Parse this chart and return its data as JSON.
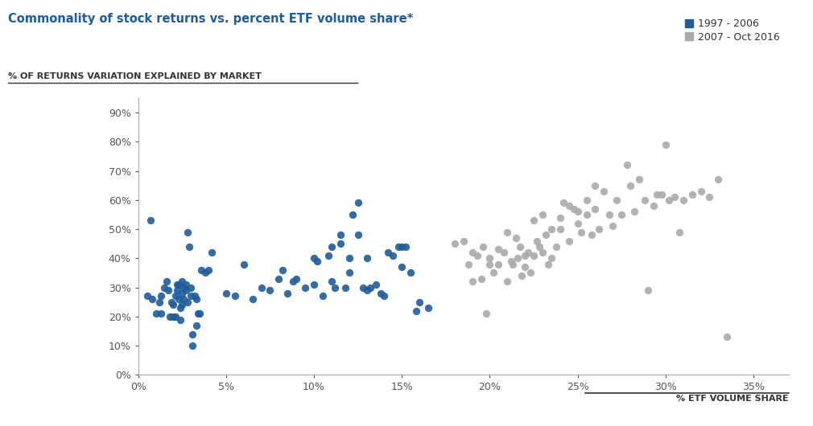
{
  "title": "Commonality of stock returns vs. percent ETF volume share*",
  "ylabel": "% OF RETURNS VARIATION EXPLAINED BY MARKET",
  "xlabel": "% ETF VOLUME SHARE",
  "series1_label": "1997 - 2006",
  "series2_label": "2007 - Oct 2016",
  "series1_color": "#1F5C99",
  "series2_color": "#AAAAAA",
  "title_color": "#1F5C99",
  "xlim": [
    0,
    0.37
  ],
  "ylim": [
    0,
    0.95
  ],
  "xticks": [
    0,
    0.05,
    0.1,
    0.15,
    0.2,
    0.25,
    0.3,
    0.35
  ],
  "yticks": [
    0,
    0.1,
    0.2,
    0.3,
    0.4,
    0.5,
    0.6,
    0.7,
    0.8,
    0.9
  ],
  "series1_x": [
    0.005,
    0.007,
    0.008,
    0.01,
    0.012,
    0.013,
    0.013,
    0.015,
    0.016,
    0.017,
    0.018,
    0.019,
    0.02,
    0.02,
    0.021,
    0.021,
    0.022,
    0.022,
    0.023,
    0.023,
    0.024,
    0.024,
    0.025,
    0.025,
    0.025,
    0.026,
    0.026,
    0.027,
    0.027,
    0.028,
    0.028,
    0.029,
    0.03,
    0.03,
    0.031,
    0.031,
    0.032,
    0.033,
    0.033,
    0.034,
    0.035,
    0.036,
    0.038,
    0.04,
    0.042,
    0.05,
    0.055,
    0.06,
    0.065,
    0.07,
    0.075,
    0.08,
    0.082,
    0.085,
    0.088,
    0.09,
    0.095,
    0.1,
    0.1,
    0.102,
    0.105,
    0.108,
    0.11,
    0.11,
    0.112,
    0.115,
    0.115,
    0.118,
    0.12,
    0.12,
    0.122,
    0.125,
    0.125,
    0.128,
    0.13,
    0.13,
    0.132,
    0.135,
    0.138,
    0.14,
    0.142,
    0.145,
    0.148,
    0.15,
    0.15,
    0.152,
    0.155,
    0.158,
    0.16,
    0.165
  ],
  "series1_y": [
    0.27,
    0.53,
    0.26,
    0.21,
    0.25,
    0.27,
    0.21,
    0.3,
    0.32,
    0.29,
    0.2,
    0.25,
    0.2,
    0.24,
    0.2,
    0.27,
    0.31,
    0.29,
    0.26,
    0.31,
    0.19,
    0.23,
    0.24,
    0.28,
    0.32,
    0.26,
    0.3,
    0.29,
    0.31,
    0.25,
    0.49,
    0.44,
    0.3,
    0.27,
    0.14,
    0.1,
    0.27,
    0.17,
    0.26,
    0.21,
    0.21,
    0.36,
    0.35,
    0.36,
    0.42,
    0.28,
    0.27,
    0.38,
    0.26,
    0.3,
    0.29,
    0.33,
    0.36,
    0.28,
    0.32,
    0.33,
    0.3,
    0.31,
    0.4,
    0.39,
    0.27,
    0.41,
    0.32,
    0.44,
    0.3,
    0.48,
    0.45,
    0.3,
    0.35,
    0.4,
    0.55,
    0.48,
    0.59,
    0.3,
    0.4,
    0.29,
    0.3,
    0.31,
    0.28,
    0.27,
    0.42,
    0.41,
    0.44,
    0.44,
    0.37,
    0.44,
    0.35,
    0.22,
    0.25,
    0.23
  ],
  "series2_x": [
    0.18,
    0.185,
    0.188,
    0.19,
    0.19,
    0.193,
    0.195,
    0.196,
    0.198,
    0.2,
    0.2,
    0.202,
    0.205,
    0.205,
    0.208,
    0.21,
    0.21,
    0.212,
    0.213,
    0.215,
    0.216,
    0.217,
    0.218,
    0.22,
    0.22,
    0.222,
    0.223,
    0.225,
    0.225,
    0.227,
    0.228,
    0.23,
    0.23,
    0.232,
    0.233,
    0.235,
    0.235,
    0.238,
    0.24,
    0.24,
    0.242,
    0.245,
    0.245,
    0.248,
    0.25,
    0.25,
    0.252,
    0.255,
    0.255,
    0.258,
    0.26,
    0.26,
    0.262,
    0.265,
    0.268,
    0.27,
    0.272,
    0.275,
    0.278,
    0.28,
    0.282,
    0.285,
    0.288,
    0.29,
    0.293,
    0.295,
    0.298,
    0.3,
    0.302,
    0.305,
    0.308,
    0.31,
    0.315,
    0.32,
    0.325,
    0.33,
    0.335
  ],
  "series2_y": [
    0.45,
    0.46,
    0.38,
    0.32,
    0.42,
    0.41,
    0.33,
    0.44,
    0.21,
    0.38,
    0.4,
    0.35,
    0.43,
    0.38,
    0.42,
    0.32,
    0.49,
    0.39,
    0.38,
    0.47,
    0.4,
    0.44,
    0.34,
    0.41,
    0.37,
    0.42,
    0.35,
    0.41,
    0.53,
    0.46,
    0.44,
    0.42,
    0.55,
    0.48,
    0.38,
    0.5,
    0.4,
    0.44,
    0.54,
    0.5,
    0.59,
    0.58,
    0.46,
    0.57,
    0.56,
    0.52,
    0.49,
    0.55,
    0.6,
    0.48,
    0.57,
    0.65,
    0.5,
    0.63,
    0.55,
    0.51,
    0.6,
    0.55,
    0.72,
    0.65,
    0.56,
    0.67,
    0.6,
    0.29,
    0.58,
    0.62,
    0.62,
    0.79,
    0.6,
    0.61,
    0.49,
    0.6,
    0.62,
    0.63,
    0.61,
    0.67,
    0.13
  ],
  "marker_size": 45,
  "alpha": 0.9,
  "background_color": "#FFFFFF",
  "title_fontsize": 10.5,
  "label_fontsize": 8.0,
  "tick_fontsize": 9,
  "legend_fontsize": 9
}
